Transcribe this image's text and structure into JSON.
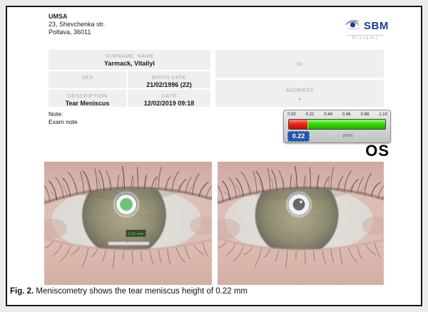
{
  "page": {
    "caption_prefix": "Fig. 2.",
    "caption_text": " Meniscometry shows the tear meniscus height of 0.22 mm"
  },
  "header": {
    "org_name": "UMSA",
    "org_address_line1": "23, Shevchenka str.",
    "org_address_line2": "Poltava, 36011",
    "logo": {
      "brand": "SBM",
      "sub": "Sistemi",
      "brand_color": "#1c3e9c"
    }
  },
  "patient_table": {
    "surname_label": "SURNAME, NAME",
    "surname_value": "Yarmack, Vitaliyi",
    "sex_label": "SEX",
    "sex_value": "",
    "birth_label": "BIRTH DATE",
    "birth_value": "21/02/1996 (22)",
    "description_label": "DESCRIPTION",
    "description_value": "Tear Meniscus",
    "date_label": "DATE",
    "date_value": "12/02/2019 09:18",
    "id_label": "ID",
    "id_value": "",
    "address_label": "ADDRESS",
    "address_value": "."
  },
  "note": {
    "label": "Note:",
    "value": "Exam note"
  },
  "scale": {
    "ticks": [
      "0.00",
      "0.22",
      "0.44",
      "0.66",
      "0.88",
      "1.10"
    ],
    "min": 0,
    "max": 1.1,
    "threshold": 0.22,
    "value": "0.22",
    "unit": "(mm)",
    "red_color": "#e8251c",
    "green_color": "#2ed407",
    "badge_color": "#2357a7"
  },
  "eye_side_label": "OS",
  "images": {
    "left": {
      "annotated": true,
      "tag": "0.22 mm"
    },
    "right": {
      "annotated": false
    }
  }
}
